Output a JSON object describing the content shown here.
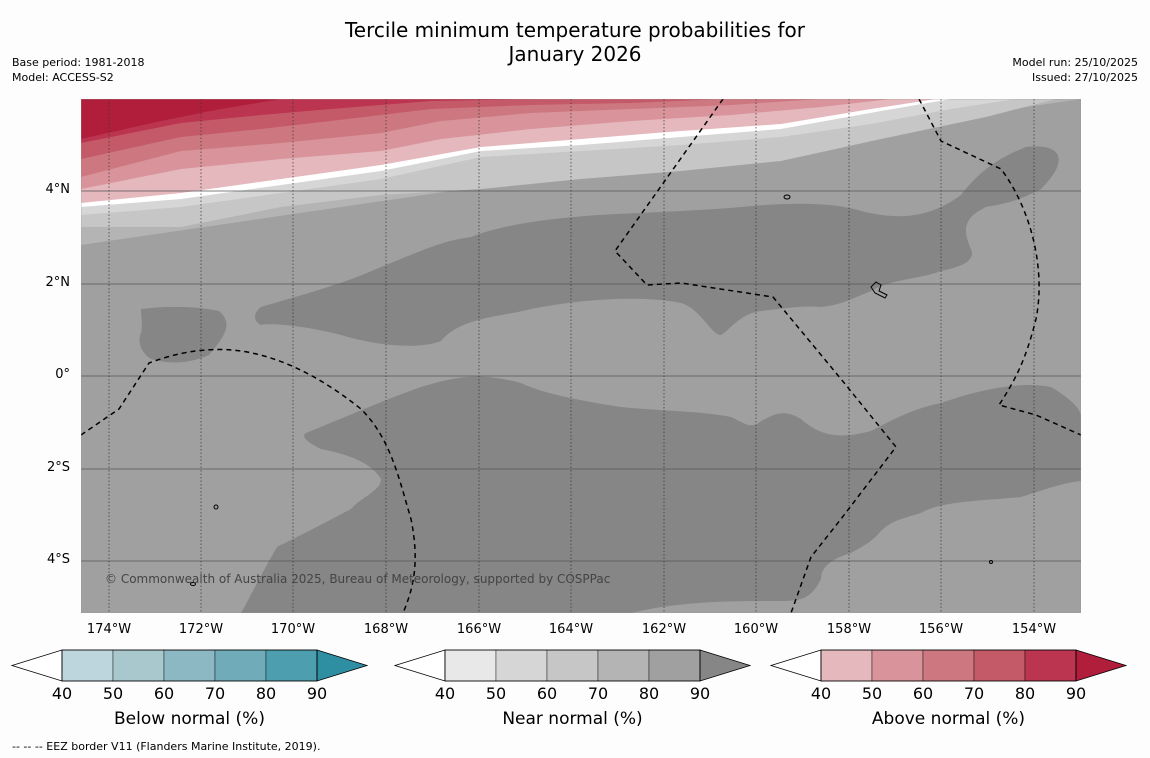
{
  "title": {
    "line1": "Tercile minimum temperature probabilities for",
    "line2": "January 2026"
  },
  "meta_left": {
    "base_period": "Base period: 1981-2018",
    "model": "Model: ACCESS-S2"
  },
  "meta_right": {
    "model_run": "Model run: 25/10/2025",
    "issued": "Issued: 27/10/2025"
  },
  "map": {
    "copyright": "© Commonwealth of Australia 2025, Bureau of Meteorology, supported by COSPPac",
    "lon_range": [
      -174.6,
      -152.9
    ],
    "lat_range": [
      -5.1,
      6.0
    ],
    "x_ticks": [
      "174°W",
      "172°W",
      "170°W",
      "168°W",
      "166°W",
      "164°W",
      "162°W",
      "160°W",
      "158°W",
      "156°W",
      "154°W"
    ],
    "y_ticks": [
      "4°N",
      "2°N",
      "0°",
      "2°S",
      "4°S"
    ]
  },
  "colorbars": [
    {
      "label": "Below normal (%)",
      "ticks": [
        "40",
        "50",
        "60",
        "70",
        "80",
        "90"
      ],
      "colors": [
        "#bdd5dc",
        "#a8c8ce",
        "#8cb8c4",
        "#6fabb8",
        "#4d9fb0",
        "#2e8fa3"
      ]
    },
    {
      "label": "Near normal (%)",
      "ticks": [
        "40",
        "50",
        "60",
        "70",
        "80",
        "90"
      ],
      "colors": [
        "#e8e8e8",
        "#d6d6d6",
        "#c6c6c6",
        "#b4b4b4",
        "#a0a0a0",
        "#868686"
      ]
    },
    {
      "label": "Above normal (%)",
      "ticks": [
        "40",
        "50",
        "60",
        "70",
        "80",
        "90"
      ],
      "colors": [
        "#e4b8bd",
        "#d8939b",
        "#cd7880",
        "#c45a68",
        "#bb3550",
        "#b01e3c"
      ]
    }
  ],
  "footnote": "--  --  -- EEZ border V11 (Flanders Marine Institute, 2019)."
}
